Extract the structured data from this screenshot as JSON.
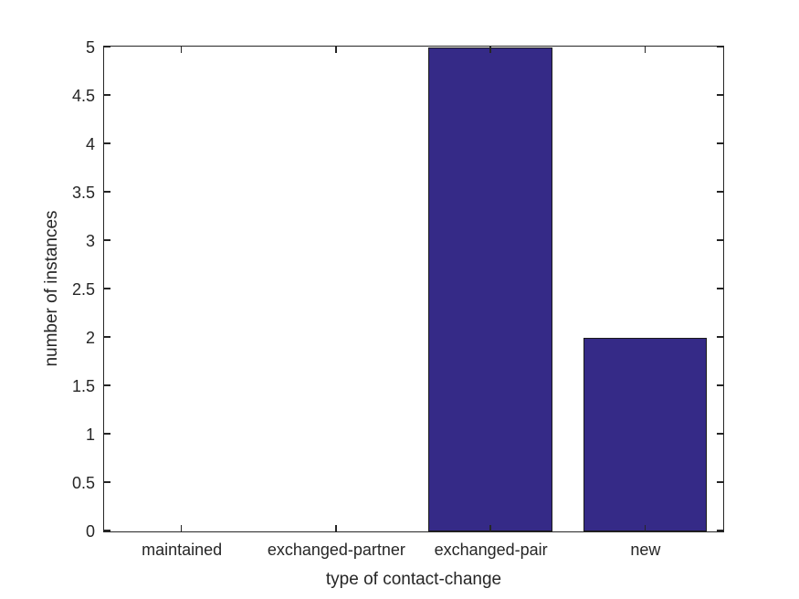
{
  "chart_data": {
    "type": "bar",
    "title": "",
    "categories": [
      "maintained",
      "exchanged-partner",
      "exchanged-pair",
      "new"
    ],
    "values": [
      0,
      0,
      5,
      2
    ],
    "xlabel": "type of contact-change",
    "ylabel": "number of instances",
    "ylim": [
      0,
      5
    ],
    "ytick_step": 0.5,
    "ytick_labels": [
      "0",
      "0.5",
      "1",
      "1.5",
      "2",
      "2.5",
      "3",
      "3.5",
      "4",
      "4.5",
      "5"
    ],
    "bar_width_fraction": 0.8,
    "grid": false,
    "legend": null,
    "box": true,
    "tick_direction": "in",
    "colors": {
      "bar_fill": "#352a87",
      "bar_edge": "#1a1a1a",
      "axis": "#262626",
      "text": "#262626",
      "background": "#ffffff"
    }
  }
}
